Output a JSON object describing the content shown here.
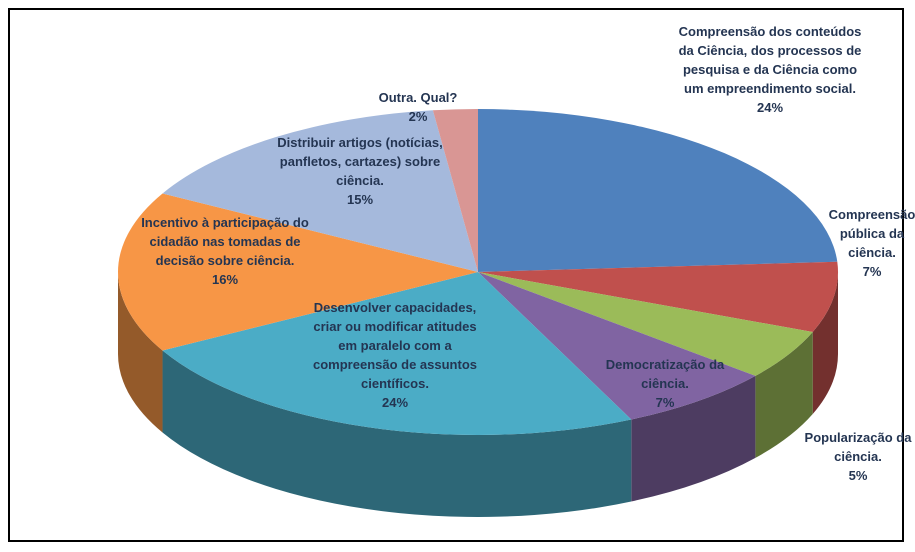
{
  "chart_data": {
    "type": "pie",
    "categories": [
      "Compreensão dos conteúdos da Ciência, dos processos de pesquisa e da Ciência como um empreendimento social.",
      "Compreensão pública da ciência.",
      "Popularização da ciência.",
      "Democratização da ciência.",
      "Desenvolver capacidades, criar ou modificar atitudes em paralelo com a compreensão de assuntos científicos.",
      "Incentivo à participação do cidadão nas tomadas de decisão sobre ciência.",
      "Distribuir artigos (notícias, panfletos, cartazes) sobre ciência.",
      "Outra. Qual?"
    ],
    "values": [
      24,
      7,
      5,
      7,
      24,
      16,
      15,
      2
    ],
    "value_labels": [
      "24%",
      "7%",
      "5%",
      "7%",
      "24%",
      "16%",
      "15%",
      "2%"
    ],
    "colors": [
      "#4f81bd",
      "#c0504d",
      "#9bbb59",
      "#8064a2",
      "#4bacc6",
      "#f79646",
      "#a5b9dc",
      "#d99694"
    ],
    "three_d": true
  }
}
